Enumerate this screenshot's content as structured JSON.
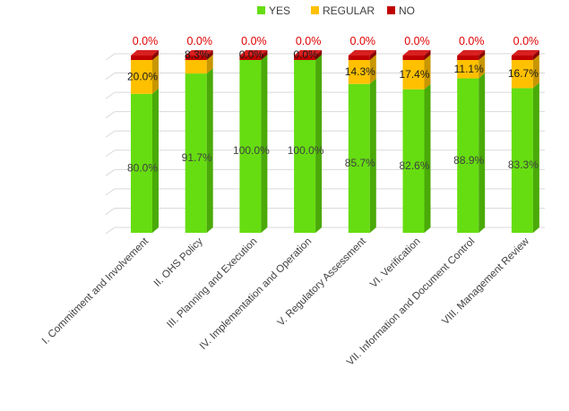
{
  "chart_data": {
    "type": "bar",
    "stacked": true,
    "title": "",
    "xlabel": "",
    "ylabel": "",
    "ylim": [
      0,
      100
    ],
    "grid": true,
    "legend_position": "top",
    "categories": [
      "I. Commitment and Involvement",
      "II. OHS Policy",
      "III. Planning and Execution",
      "IV. Implementation and Operation",
      "V. Regulatory Assessment",
      "VI. Verification",
      "VII. Information and Document Control",
      "VIII. Management Review"
    ],
    "series": [
      {
        "name": "YES",
        "color": "#66dd11",
        "side_color": "#4aaa08",
        "top_color": "#88ee33",
        "values": [
          80.0,
          91.7,
          100.0,
          100.0,
          85.7,
          82.6,
          88.9,
          83.3
        ],
        "labels": [
          "80.0%",
          "91.7%",
          "100.0%",
          "100.0%",
          "85.7%",
          "82.6%",
          "88.9%",
          "83.3%"
        ]
      },
      {
        "name": "REGULAR",
        "color": "#ffc000",
        "side_color": "#c89600",
        "top_color": "#ffd24d",
        "values": [
          20.0,
          8.3,
          0.0,
          0.0,
          14.3,
          17.4,
          11.1,
          16.7
        ],
        "labels": [
          "20.0%",
          "8.3%",
          "0.0%",
          "0.0%",
          "14.3%",
          "17.4%",
          "11.1%",
          "16.7%"
        ]
      },
      {
        "name": "NO",
        "color": "#c00000",
        "side_color": "#8a0000",
        "top_color": "#d82020",
        "values": [
          0.0,
          0.0,
          0.0,
          0.0,
          0.0,
          0.0,
          0.0,
          0.0
        ],
        "labels": [
          "0.0%",
          "0.0%",
          "0.0%",
          "0.0%",
          "0.0%",
          "0.0%",
          "0.0%",
          "0.0%"
        ]
      }
    ]
  }
}
